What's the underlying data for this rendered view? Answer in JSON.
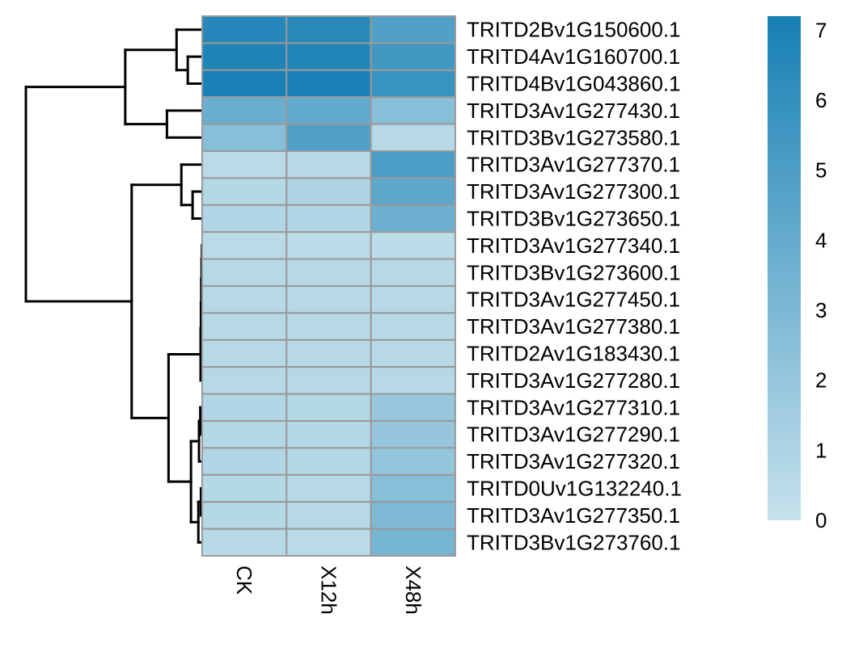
{
  "chart_data": {
    "type": "heatmap",
    "title": "",
    "xlabel": "",
    "ylabel": "",
    "columns": [
      "CK",
      "X12h",
      "X48h"
    ],
    "rows": [
      "TRITD2Bv1G150600.1",
      "TRITD4Av1G160700.1",
      "TRITD4Bv1G043860.1",
      "TRITD3Av1G277430.1",
      "TRITD3Bv1G273580.1",
      "TRITD3Av1G277370.1",
      "TRITD3Av1G277300.1",
      "TRITD3Bv1G273650.1",
      "TRITD3Av1G277340.1",
      "TRITD3Bv1G273600.1",
      "TRITD3Av1G277450.1",
      "TRITD3Av1G277380.1",
      "TRITD2Av1G183430.1",
      "TRITD3Av1G277280.1",
      "TRITD3Av1G277310.1",
      "TRITD3Av1G277290.1",
      "TRITD3Av1G277320.1",
      "TRITD0Uv1G132240.1",
      "TRITD3Av1G277350.1",
      "TRITD3Bv1G273760.1"
    ],
    "values": [
      [
        6.6,
        6.5,
        4.8
      ],
      [
        6.9,
        6.8,
        5.5
      ],
      [
        7.1,
        7.1,
        5.8
      ],
      [
        3.8,
        4.1,
        2.6
      ],
      [
        2.6,
        4.8,
        0.6
      ],
      [
        0.5,
        0.6,
        5.0
      ],
      [
        0.7,
        1.0,
        4.3
      ],
      [
        0.8,
        0.8,
        3.7
      ],
      [
        0.5,
        0.4,
        0.4
      ],
      [
        0.6,
        0.6,
        0.6
      ],
      [
        0.6,
        0.6,
        0.6
      ],
      [
        0.6,
        0.6,
        0.6
      ],
      [
        0.6,
        0.6,
        0.6
      ],
      [
        0.6,
        0.6,
        0.6
      ],
      [
        0.8,
        0.7,
        1.9
      ],
      [
        0.7,
        0.7,
        2.0
      ],
      [
        0.8,
        0.7,
        2.1
      ],
      [
        0.7,
        0.6,
        2.6
      ],
      [
        0.7,
        0.6,
        3.0
      ],
      [
        0.6,
        0.5,
        3.3
      ]
    ],
    "color_scale": {
      "min": 0,
      "max": 7.2,
      "low_color": "#c6e1ec",
      "high_color": "#1780b5",
      "ticks": [
        0,
        1,
        2,
        3,
        4,
        5,
        6,
        7
      ]
    },
    "cell_border_color": "#999999",
    "dendrogram": {
      "merges": [
        [
          [
            1
          ],
          [
            2
          ],
          0.45
        ],
        [
          [
            0
          ],
          [
            1,
            2
          ],
          0.8
        ],
        [
          [
            3
          ],
          [
            4
          ],
          1.1
        ],
        [
          [
            0,
            1,
            2
          ],
          [
            3,
            4
          ],
          2.4
        ],
        [
          [
            6
          ],
          [
            7
          ],
          0.3
        ],
        [
          [
            5
          ],
          [
            6,
            7
          ],
          0.65
        ],
        [
          [
            8
          ],
          [
            9
          ],
          0.01
        ],
        [
          [
            8,
            9
          ],
          [
            10
          ],
          0.02
        ],
        [
          [
            8,
            9,
            10
          ],
          [
            11
          ],
          0.03
        ],
        [
          [
            8,
            9,
            10,
            11
          ],
          [
            12
          ],
          0.04
        ],
        [
          [
            8,
            9,
            10,
            11,
            12
          ],
          [
            13
          ],
          0.05
        ],
        [
          [
            14
          ],
          [
            15
          ],
          0.06
        ],
        [
          [
            14,
            15
          ],
          [
            16
          ],
          0.1
        ],
        [
          [
            17
          ],
          [
            18
          ],
          0.04
        ],
        [
          [
            17,
            18
          ],
          [
            19
          ],
          0.12
        ],
        [
          [
            14,
            15,
            16
          ],
          [
            17,
            18,
            19
          ],
          0.35
        ],
        [
          [
            8,
            9,
            10,
            11,
            12,
            13
          ],
          [
            14,
            15,
            16,
            17,
            18,
            19
          ],
          1.05
        ],
        [
          [
            5,
            6,
            7
          ],
          [
            8,
            9,
            10,
            11,
            12,
            13,
            14,
            15,
            16,
            17,
            18,
            19
          ],
          2.2
        ],
        [
          [
            0,
            1,
            2,
            3,
            4
          ],
          [
            5,
            6,
            7,
            8,
            9,
            10,
            11,
            12,
            13,
            14,
            15,
            16,
            17,
            18,
            19
          ],
          5.5
        ]
      ]
    }
  }
}
